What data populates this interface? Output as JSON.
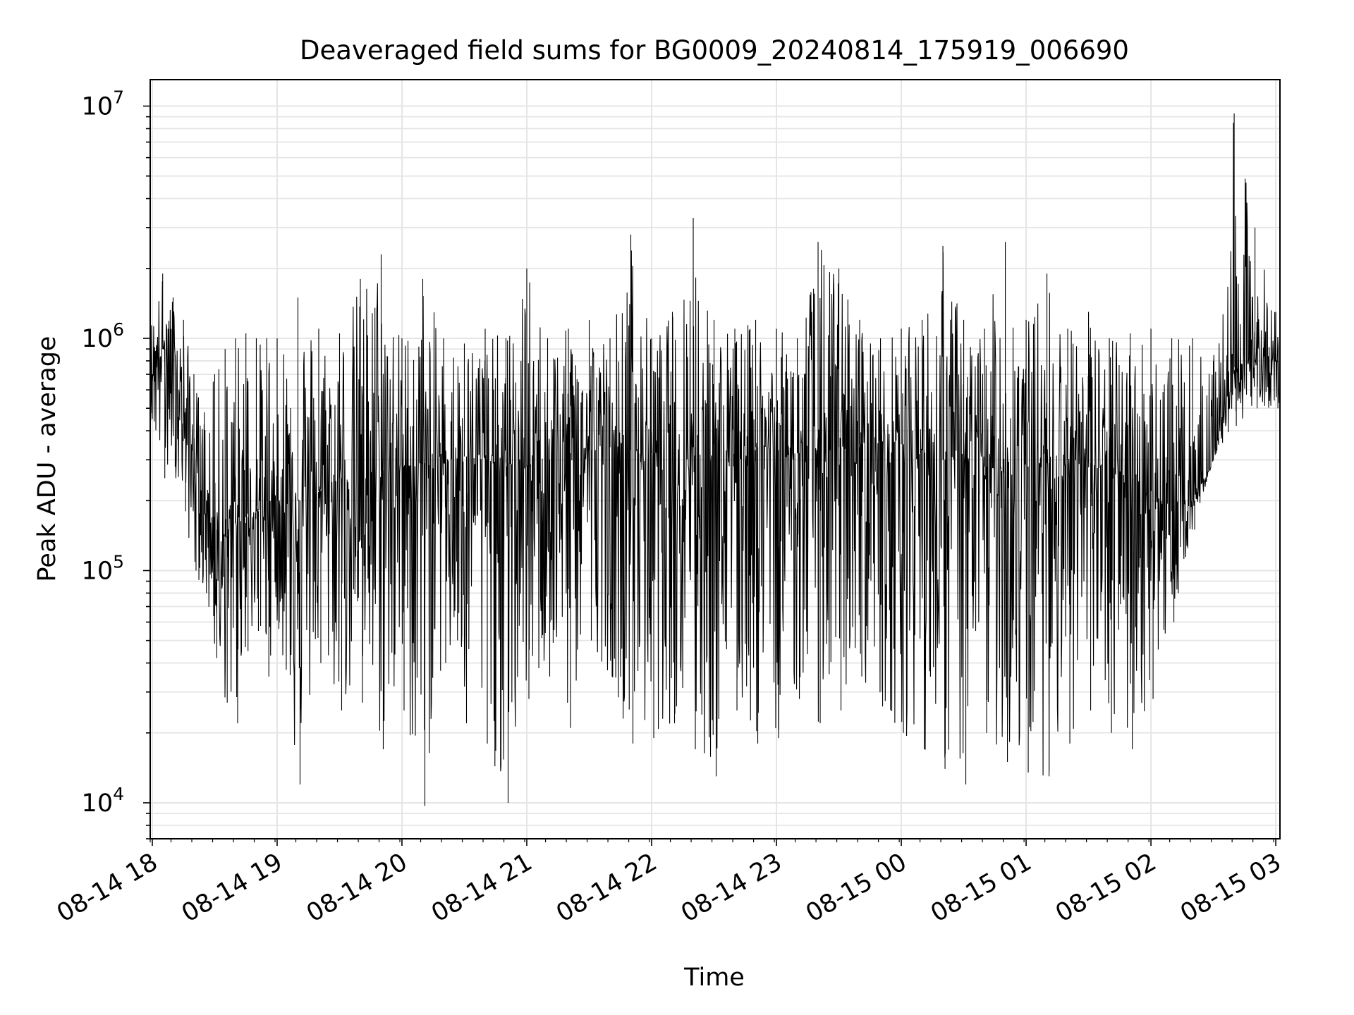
{
  "chart_data": {
    "type": "line",
    "title": "Deaveraged field sums for BG0009_20240814_175919_006690",
    "xlabel": "Time",
    "ylabel": "Peak ADU - average",
    "yscale": "log",
    "ylim": [
      7000,
      13000000
    ],
    "xlim": [
      "2024-08-14 17:59",
      "2024-08-15 03:02"
    ],
    "grid": true,
    "line_color": "#000000",
    "x_ticks": [
      "08-14 18",
      "08-14 19",
      "08-14 20",
      "08-14 21",
      "08-14 22",
      "08-14 23",
      "08-15 00",
      "08-15 01",
      "08-15 02",
      "08-15 03"
    ],
    "y_ticks": [
      {
        "value": 10000,
        "base": "10",
        "exp": "4"
      },
      {
        "value": 100000,
        "base": "10",
        "exp": "5"
      },
      {
        "value": 1000000,
        "base": "10",
        "exp": "6"
      },
      {
        "value": 10000000,
        "base": "10",
        "exp": "7"
      }
    ],
    "series": [
      {
        "x": [
          "2024-08-14 17:59",
          "2024-08-14 18:05",
          "2024-08-14 18:10",
          "2024-08-14 18:15",
          "2024-08-14 18:20",
          "2024-08-14 18:25",
          "2024-08-14 18:30",
          "2024-08-14 18:35",
          "2024-08-14 18:40",
          "2024-08-14 18:45",
          "2024-08-14 18:50",
          "2024-08-14 18:55",
          "2024-08-14 19:00",
          "2024-08-14 19:10",
          "2024-08-14 19:20",
          "2024-08-14 19:30",
          "2024-08-14 19:40",
          "2024-08-14 19:50",
          "2024-08-14 20:00",
          "2024-08-14 20:10",
          "2024-08-14 20:20",
          "2024-08-14 20:30",
          "2024-08-14 20:40",
          "2024-08-14 20:50",
          "2024-08-14 21:00",
          "2024-08-14 21:10",
          "2024-08-14 21:20",
          "2024-08-14 21:30",
          "2024-08-14 21:40",
          "2024-08-14 21:50",
          "2024-08-14 22:00",
          "2024-08-14 22:10",
          "2024-08-14 22:20",
          "2024-08-14 22:30",
          "2024-08-14 22:40",
          "2024-08-14 22:50",
          "2024-08-14 23:00",
          "2024-08-14 23:10",
          "2024-08-14 23:20",
          "2024-08-14 23:30",
          "2024-08-14 23:40",
          "2024-08-14 23:50",
          "2024-08-15 00:00",
          "2024-08-15 00:10",
          "2024-08-15 00:20",
          "2024-08-15 00:30",
          "2024-08-15 00:40",
          "2024-08-15 00:50",
          "2024-08-15 01:00",
          "2024-08-15 01:10",
          "2024-08-15 01:20",
          "2024-08-15 01:30",
          "2024-08-15 01:40",
          "2024-08-15 01:50",
          "2024-08-15 02:00",
          "2024-08-15 02:10",
          "2024-08-15 02:20",
          "2024-08-15 02:30",
          "2024-08-15 02:40",
          "2024-08-15 02:50",
          "2024-08-15 03:00"
        ],
        "baseline": [
          700000,
          900000,
          850000,
          500000,
          300000,
          200000,
          150000,
          140000,
          160000,
          170000,
          180000,
          200000,
          200000,
          200000,
          220000,
          250000,
          260000,
          270000,
          280000,
          290000,
          300000,
          310000,
          300000,
          290000,
          280000,
          300000,
          320000,
          330000,
          340000,
          330000,
          320000,
          330000,
          340000,
          350000,
          350000,
          340000,
          330000,
          320000,
          330000,
          340000,
          350000,
          360000,
          350000,
          330000,
          300000,
          290000,
          280000,
          270000,
          280000,
          290000,
          300000,
          290000,
          270000,
          250000,
          220000,
          180000,
          200000,
          300000,
          750000,
          800000,
          800000
        ],
        "high": [
          1200000,
          1900000,
          1500000,
          1200000,
          700000,
          480000,
          700000,
          900000,
          1000000,
          1050000,
          1000000,
          1000000,
          1000000,
          1500000,
          1100000,
          1050000,
          1800000,
          2300000,
          1000000,
          1800000,
          1000000,
          950000,
          1100000,
          1000000,
          2000000,
          1000000,
          1100000,
          1200000,
          1000000,
          2800000,
          1000000,
          1300000,
          3300000,
          1200000,
          1100000,
          1200000,
          1100000,
          1000000,
          2600000,
          2000000,
          1200000,
          1000000,
          1100000,
          1200000,
          2500000,
          1200000,
          1100000,
          2600000,
          1200000,
          1900000,
          1100000,
          1300000,
          1000000,
          1050000,
          1100000,
          1000000,
          1000000,
          800000,
          9300000,
          3000000,
          1300000
        ],
        "low": [
          450000,
          250000,
          280000,
          180000,
          100000,
          80000,
          42000,
          27000,
          22000,
          45000,
          55000,
          35000,
          60000,
          12000,
          40000,
          25000,
          27000,
          17000,
          25000,
          9700,
          40000,
          22000,
          18000,
          10000,
          28000,
          35000,
          21000,
          50000,
          35000,
          18000,
          19000,
          22000,
          17000,
          13000,
          25000,
          18000,
          19000,
          28000,
          22000,
          25000,
          35000,
          26000,
          20000,
          17000,
          14000,
          12000,
          20000,
          15000,
          13500,
          13000,
          18000,
          25000,
          20000,
          17000,
          28000,
          60000,
          150000,
          300000,
          420000,
          500000,
          500000
        ]
      }
    ]
  }
}
